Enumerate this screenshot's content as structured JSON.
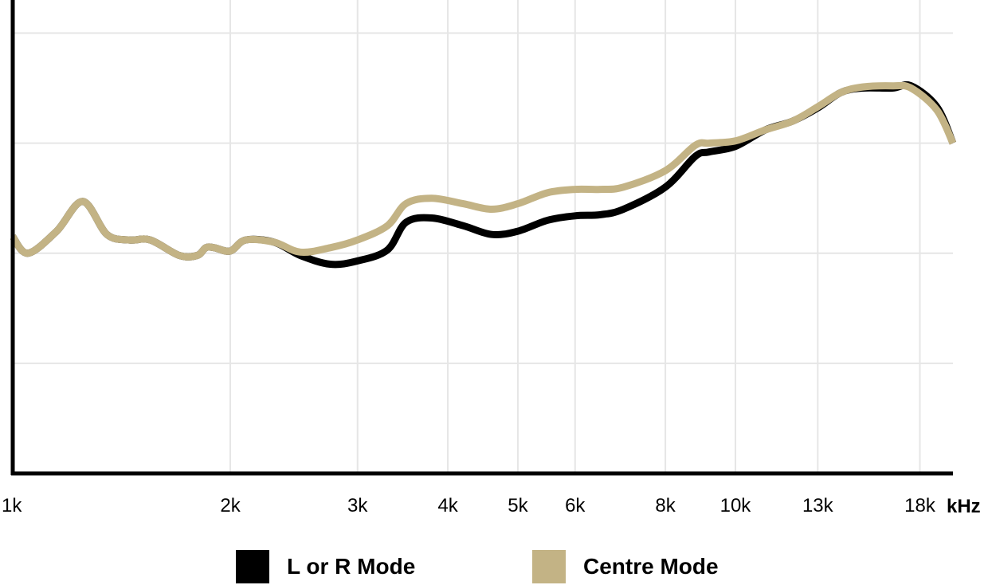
{
  "chart_data": {
    "type": "line",
    "xscale": "log",
    "xlabel": "kHz",
    "xlim": [
      1,
      20
    ],
    "x_ticks": [
      1,
      2,
      3,
      4,
      5,
      6,
      8,
      10,
      13,
      18
    ],
    "x_tick_labels": [
      "1k",
      "2k",
      "3k",
      "4k",
      "5k",
      "6k",
      "8k",
      "10k",
      "13k",
      "18k"
    ],
    "ylabel": "",
    "ylim": [
      0,
      4.3
    ],
    "y_ticks": [
      1,
      2,
      3,
      4
    ],
    "y_tick_labels": [],
    "grid": true,
    "legend": "bottom",
    "series": [
      {
        "name": "L or R Mode",
        "color": "#000000",
        "x": [
          1.0,
          1.05,
          1.15,
          1.25,
          1.35,
          1.45,
          1.55,
          1.7,
          1.8,
          1.85,
          1.9,
          2.0,
          2.1,
          2.3,
          2.5,
          2.75,
          3.0,
          3.3,
          3.5,
          3.8,
          4.2,
          4.6,
          5.0,
          5.5,
          6.0,
          6.5,
          7.0,
          8.0,
          8.8,
          9.2,
          10.0,
          11.0,
          12.0,
          13.0,
          14.0,
          15.0,
          16.5,
          17.5,
          19.0,
          20.0
        ],
        "y": [
          2.15,
          2.0,
          2.2,
          2.47,
          2.17,
          2.12,
          2.12,
          1.98,
          1.98,
          2.05,
          2.05,
          2.02,
          2.12,
          2.1,
          1.98,
          1.9,
          1.93,
          2.03,
          2.28,
          2.32,
          2.25,
          2.17,
          2.2,
          2.3,
          2.34,
          2.35,
          2.4,
          2.6,
          2.88,
          2.92,
          2.97,
          3.12,
          3.2,
          3.32,
          3.46,
          3.5,
          3.5,
          3.52,
          3.33,
          3.0
        ]
      },
      {
        "name": "Centre Mode",
        "color": "#c3b385",
        "x": [
          1.0,
          1.05,
          1.15,
          1.25,
          1.35,
          1.45,
          1.55,
          1.7,
          1.8,
          1.85,
          1.9,
          2.0,
          2.1,
          2.3,
          2.5,
          2.75,
          3.0,
          3.3,
          3.5,
          3.8,
          4.2,
          4.6,
          5.0,
          5.5,
          6.0,
          6.5,
          7.0,
          8.0,
          8.8,
          9.2,
          10.0,
          11.0,
          12.0,
          13.0,
          14.0,
          15.0,
          16.5,
          17.5,
          19.0,
          20.0
        ],
        "y": [
          2.15,
          2.0,
          2.2,
          2.47,
          2.17,
          2.12,
          2.12,
          1.98,
          1.98,
          2.05,
          2.05,
          2.02,
          2.12,
          2.1,
          2.01,
          2.05,
          2.12,
          2.25,
          2.45,
          2.5,
          2.45,
          2.4,
          2.45,
          2.55,
          2.58,
          2.58,
          2.6,
          2.75,
          2.98,
          3.0,
          3.02,
          3.12,
          3.2,
          3.33,
          3.46,
          3.51,
          3.52,
          3.5,
          3.3,
          3.0
        ]
      }
    ]
  },
  "legend": {
    "items": [
      {
        "label": "L or R Mode",
        "color": "#000000"
      },
      {
        "label": "Centre Mode",
        "color": "#c3b385"
      }
    ]
  }
}
